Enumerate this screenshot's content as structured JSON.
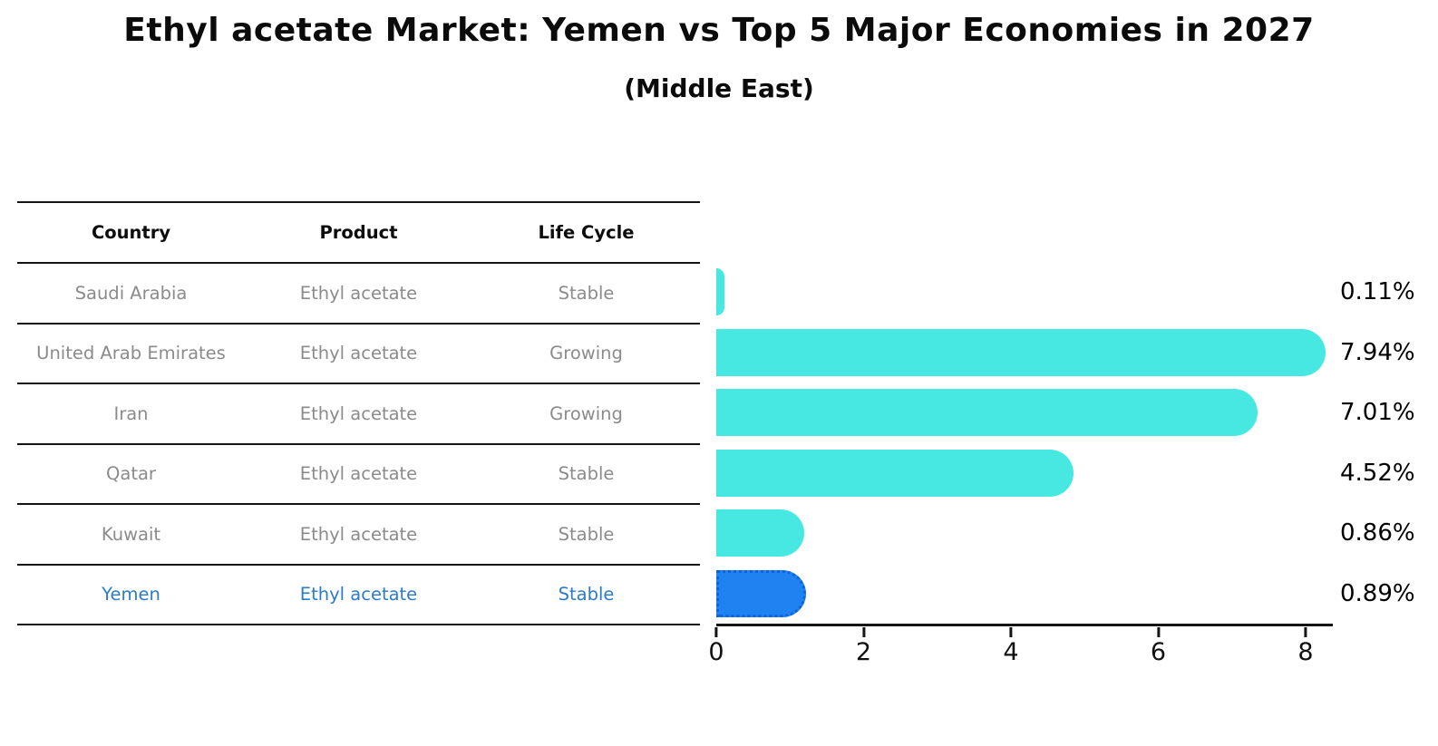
{
  "title": "Ethyl acetate Market: Yemen vs Top 5 Major Economies in 2027",
  "subtitle": "(Middle East)",
  "table": {
    "columns": [
      "Country",
      "Product",
      "Life Cycle"
    ],
    "rows": [
      {
        "country": "Saudi Arabia",
        "product": "Ethyl acetate",
        "life_cycle": "Stable"
      },
      {
        "country": "United Arab Emirates",
        "product": "Ethyl acetate",
        "life_cycle": "Growing"
      },
      {
        "country": "Iran",
        "product": "Ethyl acetate",
        "life_cycle": "Growing"
      },
      {
        "country": "Qatar",
        "product": "Ethyl acetate",
        "life_cycle": "Stable"
      },
      {
        "country": "Kuwait",
        "product": "Ethyl acetate",
        "life_cycle": "Stable"
      },
      {
        "country": "Yemen",
        "product": "Ethyl acetate",
        "life_cycle": "Stable"
      }
    ],
    "highlight_row": "Yemen",
    "highlight_text_color": "#2b7bc9"
  },
  "chart_data": {
    "type": "bar",
    "orientation": "horizontal",
    "title": "Ethyl acetate Market: Yemen vs Top 5 Major Economies in 2027",
    "subtitle": "(Middle East)",
    "categories": [
      "Saudi Arabia",
      "United Arab Emirates",
      "Iran",
      "Qatar",
      "Kuwait",
      "Yemen"
    ],
    "values": [
      0.11,
      7.94,
      7.01,
      4.52,
      0.86,
      0.89
    ],
    "value_labels": [
      "0.11%",
      "7.94%",
      "7.01%",
      "4.52%",
      "0.86%",
      "0.89%"
    ],
    "unit": "%",
    "x_ticks": [
      0,
      2,
      4,
      6,
      8
    ],
    "xlim": [
      0,
      8.37
    ],
    "grid": false,
    "legend": false,
    "highlight_index": 5,
    "bar_color": "#46E8E1",
    "highlight_color": "#1E82F0",
    "highlight_border_color": "#0c63dd"
  }
}
